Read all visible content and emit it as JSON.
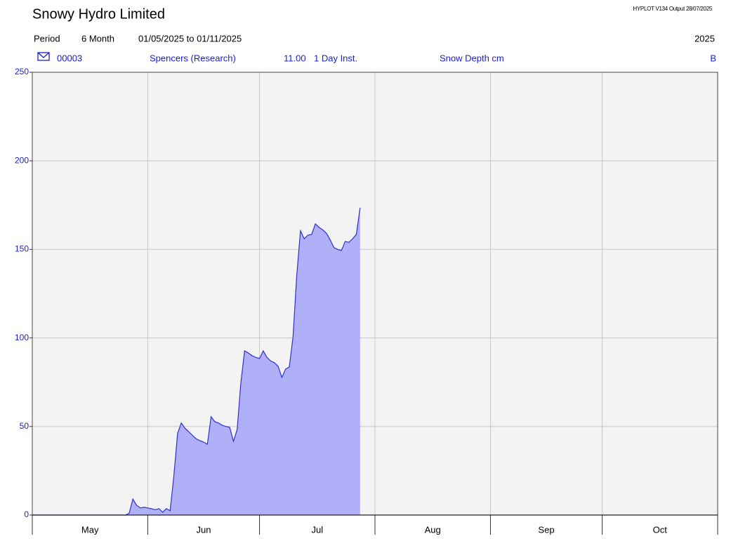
{
  "chart_data": {
    "type": "area",
    "title": "Snowy Hydro Limited",
    "header": {
      "output": "HYPLOT V134 Output 28/07/2025",
      "period_label": "Period",
      "period": "6 Month",
      "range": "01/05/2025 to 01/11/2025",
      "year": "2025"
    },
    "series": [
      {
        "site": "00003",
        "name": "Spencers (Research)",
        "datasource": "11.00",
        "interval": "1 Day Inst.",
        "variable": "Snow Depth cm",
        "quality": "B",
        "color": "#3030d0",
        "fill_color": "#b0b0f8",
        "x": [
          "2025-05-01",
          "2025-05-02",
          "2025-05-03",
          "2025-05-04",
          "2025-05-05",
          "2025-05-06",
          "2025-05-07",
          "2025-05-08",
          "2025-05-09",
          "2025-05-10",
          "2025-05-11",
          "2025-05-12",
          "2025-05-13",
          "2025-05-14",
          "2025-05-15",
          "2025-05-16",
          "2025-05-17",
          "2025-05-18",
          "2025-05-19",
          "2025-05-20",
          "2025-05-21",
          "2025-05-22",
          "2025-05-23",
          "2025-05-24",
          "2025-05-25",
          "2025-05-26",
          "2025-05-27",
          "2025-05-28",
          "2025-05-29",
          "2025-05-30",
          "2025-05-31",
          "2025-06-01",
          "2025-06-02",
          "2025-06-03",
          "2025-06-04",
          "2025-06-05",
          "2025-06-06",
          "2025-06-07",
          "2025-06-08",
          "2025-06-09",
          "2025-06-10",
          "2025-06-11",
          "2025-06-12",
          "2025-06-13",
          "2025-06-14",
          "2025-06-15",
          "2025-06-16",
          "2025-06-17",
          "2025-06-18",
          "2025-06-19",
          "2025-06-20",
          "2025-06-21",
          "2025-06-22",
          "2025-06-23",
          "2025-06-24",
          "2025-06-25",
          "2025-06-26",
          "2025-06-27",
          "2025-06-28",
          "2025-06-29",
          "2025-06-30",
          "2025-07-01",
          "2025-07-02",
          "2025-07-03",
          "2025-07-04",
          "2025-07-05",
          "2025-07-06",
          "2025-07-07",
          "2025-07-08",
          "2025-07-09",
          "2025-07-10",
          "2025-07-11",
          "2025-07-12",
          "2025-07-13",
          "2025-07-14",
          "2025-07-15",
          "2025-07-16",
          "2025-07-17",
          "2025-07-18",
          "2025-07-19",
          "2025-07-20",
          "2025-07-21",
          "2025-07-22",
          "2025-07-23",
          "2025-07-24",
          "2025-07-25",
          "2025-07-26",
          "2025-07-27",
          "2025-07-28"
        ],
        "values": [
          0,
          0,
          0,
          0,
          0,
          0,
          0,
          0,
          0,
          0,
          0,
          0,
          0,
          0,
          0,
          0,
          0,
          0,
          0,
          0,
          0,
          0,
          0,
          0,
          0,
          0,
          1,
          9,
          5.5,
          4,
          4.4,
          4,
          3.6,
          3,
          3.6,
          1.6,
          3.6,
          2.4,
          22,
          46,
          52,
          49,
          47,
          45,
          43,
          42,
          41.2,
          40,
          55.5,
          52.7,
          52,
          50.7,
          50,
          49.5,
          41.6,
          48.3,
          75,
          92.7,
          91.5,
          90,
          89,
          88.4,
          92.7,
          89,
          87,
          86,
          84,
          77.7,
          82.4,
          83.6,
          100.6,
          135.5,
          160.5,
          156,
          158,
          158.5,
          164.4,
          162.4,
          161,
          159,
          155.3,
          151,
          150,
          149.4,
          154.5,
          154,
          156,
          158.5,
          173.5
        ]
      }
    ],
    "xlim": [
      "2025-05-01",
      "2025-11-01"
    ],
    "xticks": [
      "2025-05-01",
      "2025-06-01",
      "2025-07-01",
      "2025-08-01",
      "2025-09-01",
      "2025-10-01",
      "2025-11-01"
    ],
    "categories": [
      "May",
      "Jun",
      "Jul",
      "Aug",
      "Sep",
      "Oct"
    ],
    "ylim": [
      0,
      250
    ],
    "yticks": [
      0,
      50,
      100,
      150,
      200,
      250
    ],
    "grid": true
  }
}
